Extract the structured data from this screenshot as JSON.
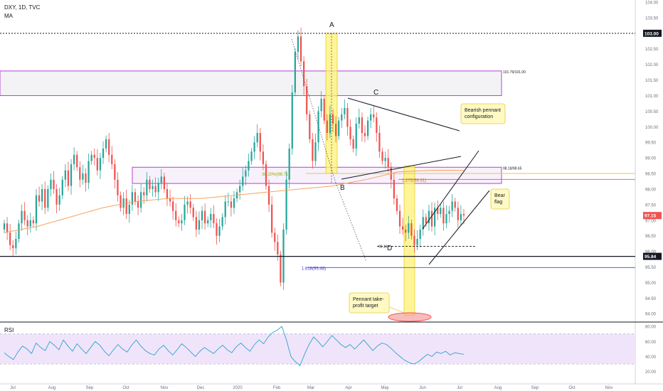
{
  "header": {
    "symbol_line": "DXY, 1D, TVC",
    "indicator": "MA"
  },
  "rsi_label": "RSI",
  "colors": {
    "up": "#26a69a",
    "down": "#ef5350",
    "ma": "#f7a35c",
    "zone": "#b83fd6",
    "highlight_yellow": "#fff176",
    "rsi_line": "#2aa3c8",
    "rsi_band": "#f0e4fb",
    "price_badge": "#ef5350"
  },
  "annotations": {
    "point_a": "A",
    "point_b": "B",
    "point_c": "C",
    "point_d": "D",
    "zone_upper_label": "101.79/101.00",
    "zone_lower_label": "98.18/98.65",
    "fib_382": "38.20%(98.71)",
    "fib_1272": "1.272(98.31)",
    "fib_1618": "1.618(95.48)",
    "level_d": "96.16",
    "bearish_pennant": [
      "Bearish pennant",
      "configuration"
    ],
    "bear_flag": [
      "Bear",
      "flag"
    ],
    "take_profit": [
      "Pennant take-",
      "profit target"
    ]
  },
  "chart_data": [
    {
      "type": "candlestick",
      "symbol": "DXY",
      "interval": "1D",
      "source": "TVC",
      "y_axis_labels": [
        "104.00",
        "103.50",
        "103.00",
        "102.50",
        "102.00",
        "101.50",
        "101.00",
        "100.50",
        "100.00",
        "99.50",
        "99.00",
        "98.50",
        "98.00",
        "97.50",
        "97.00",
        "96.50",
        "96.00",
        "95.50",
        "95.00",
        "94.50",
        "94.00"
      ],
      "x_axis_labels": [
        "Jul",
        "Aug",
        "Sep",
        "Oct",
        "Nov",
        "Dec",
        "2020",
        "Feb",
        "Mar",
        "Apr",
        "May",
        "Jun",
        "Jul",
        "Aug",
        "Sep",
        "Oct",
        "Nov"
      ],
      "ylim": [
        93.8,
        104.0
      ],
      "highlighted_prices": [
        {
          "label": "103.00",
          "style": "black"
        },
        {
          "label": "97.15",
          "style": "red"
        },
        {
          "label": "95.84",
          "style": "black"
        }
      ],
      "horizontal_levels": [
        103.0,
        95.84,
        98.5,
        98.31,
        95.48
      ],
      "pivots": [
        {
          "label": "A",
          "value": 103.0
        },
        {
          "label": "B",
          "value": 98.3
        },
        {
          "label": "C",
          "value": 100.9
        },
        {
          "label": "D",
          "value": 96.16
        }
      ],
      "price_path": [
        96.9,
        96.6,
        96.2,
        96.1,
        96.4,
        96.9,
        97.3,
        97.0,
        96.8,
        97.0,
        96.9,
        97.8,
        97.6,
        98.0,
        97.4,
        98.0,
        98.3,
        98.0,
        97.5,
        97.8,
        98.3,
        98.6,
        98.1,
        98.8,
        99.1,
        98.7,
        98.3,
        98.5,
        98.2,
        98.9,
        99.1,
        99.0,
        98.6,
        99.0,
        99.3,
        99.6,
        99.1,
        98.8,
        98.3,
        97.8,
        97.4,
        97.7,
        97.2,
        97.5,
        97.9,
        97.6,
        97.4,
        97.9,
        97.8,
        98.3,
        98.0,
        98.1,
        97.9,
        98.2,
        98.4,
        98.0,
        97.7,
        97.6,
        97.3,
        97.0,
        96.9,
        97.0,
        97.5,
        97.6,
        97.4,
        97.1,
        96.7,
        97.0,
        97.3,
        96.9,
        97.0,
        97.2,
        96.9,
        96.5,
        96.8,
        97.1,
        97.6,
        97.6,
        97.4,
        97.7,
        97.9,
        98.1,
        98.4,
        98.6,
        98.9,
        99.2,
        99.5,
        99.8,
        99.2,
        98.8,
        98.1,
        97.5,
        96.6,
        96.3,
        95.9,
        95.0,
        96.7,
        98.3,
        99.3,
        101.1,
        102.4,
        102.9,
        102.1,
        101.3,
        100.4,
        99.6,
        98.9,
        99.5,
        100.5,
        100.9,
        100.2,
        99.8,
        100.4,
        100.1,
        99.7,
        100.2,
        100.4,
        100.6,
        100.0,
        99.6,
        99.3,
        100.1,
        100.3,
        99.8,
        99.7,
        100.2,
        100.4,
        100.3,
        99.8,
        99.2,
        98.9,
        99.0,
        98.7,
        98.3,
        97.7,
        97.3,
        96.8,
        96.7,
        96.6,
        96.9,
        96.5,
        96.2,
        96.4,
        96.7,
        97.1,
        96.9,
        97.3,
        96.8,
        97.4,
        97.2,
        97.4,
        96.9,
        97.2,
        97.3,
        97.6,
        97.4,
        97.0,
        97.2,
        97.15
      ],
      "moving_average_path": [
        96.6,
        96.8,
        97.1,
        97.4,
        97.6,
        97.7,
        97.7,
        97.8,
        97.9,
        98.0,
        98.1,
        98.3,
        98.55,
        98.6,
        98.6
      ]
    },
    {
      "type": "line",
      "name": "RSI",
      "y_axis_labels": [
        "80.00",
        "60.00",
        "40.00",
        "20.00"
      ],
      "ylim": [
        15,
        83
      ],
      "bands": [
        30,
        70
      ],
      "values": [
        45,
        40,
        36,
        46,
        54,
        50,
        44,
        58,
        52,
        48,
        60,
        55,
        49,
        62,
        54,
        47,
        57,
        50,
        44,
        52,
        60,
        55,
        47,
        41,
        49,
        56,
        50,
        46,
        55,
        62,
        54,
        48,
        44,
        42,
        50,
        55,
        48,
        42,
        49,
        57,
        52,
        46,
        40,
        47,
        52,
        48,
        44,
        50,
        55,
        49,
        45,
        53,
        58,
        52,
        47,
        56,
        62,
        57,
        66,
        72,
        75,
        80,
        62,
        40,
        33,
        28,
        43,
        56,
        66,
        60,
        53,
        60,
        68,
        62,
        56,
        52,
        56,
        50,
        56,
        62,
        55,
        48,
        54,
        58,
        56,
        51,
        45,
        40,
        35,
        32,
        30,
        33,
        38,
        43,
        40,
        46,
        44,
        47,
        42,
        45,
        44,
        43
      ]
    }
  ]
}
